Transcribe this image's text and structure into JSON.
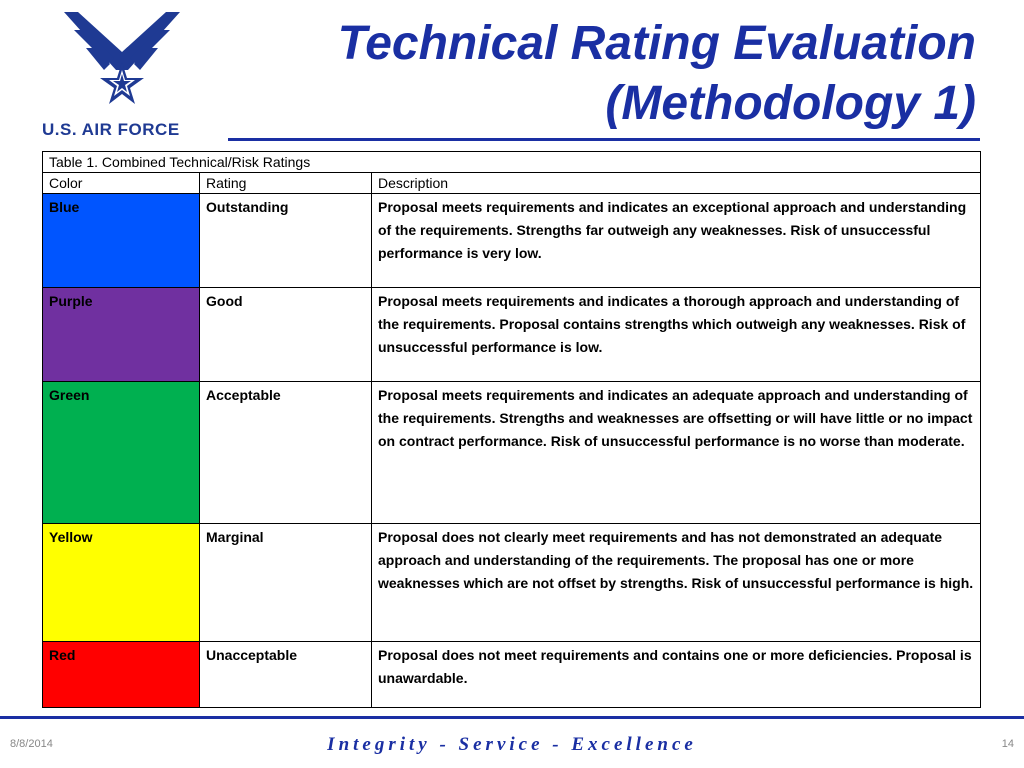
{
  "header": {
    "logo_icon": "usaf-wings-star-icon",
    "logo_text": "U.S. AIR FORCE",
    "title_line1": "Technical Rating Evaluation",
    "title_line2": "(Methodology 1)",
    "title_color": "#1a2fa3"
  },
  "table": {
    "caption": "Table 1. Combined Technical/Risk Ratings",
    "columns": [
      "Color",
      "Rating",
      "Description"
    ],
    "rows": [
      {
        "color": "Blue",
        "hex": "#0055ff",
        "rating": "Outstanding",
        "description": "Proposal meets requirements and indicates an exceptional approach and understanding of the requirements. Strengths far outweigh any weaknesses. Risk of unsuccessful performance is very low."
      },
      {
        "color": "Purple",
        "hex": "#7030a0",
        "rating": "Good",
        "description": "Proposal meets requirements and indicates a thorough approach and understanding of the requirements. Proposal contains strengths which outweigh any weaknesses. Risk of unsuccessful performance is low."
      },
      {
        "color": "Green",
        "hex": "#00b050",
        "rating": "Acceptable",
        "description": "Proposal meets requirements and indicates an adequate approach and understanding of the requirements. Strengths and weaknesses are offsetting or will have little or no impact on contract performance. Risk of unsuccessful performance is no worse than moderate."
      },
      {
        "color": "Yellow",
        "hex": "#ffff00",
        "rating": "Marginal",
        "description": "Proposal does not clearly meet requirements and has not demonstrated an adequate approach and understanding of the requirements. The proposal has one or more weaknesses which are not offset by strengths. Risk of unsuccessful performance is high."
      },
      {
        "color": "Red",
        "hex": "#ff0000",
        "rating": "Unacceptable",
        "description": "Proposal does not meet requirements and contains one or more deficiencies. Proposal is unawardable."
      }
    ]
  },
  "footer": {
    "date": "8/8/2014",
    "motto": "Integrity - Service - Excellence",
    "page": "14"
  }
}
